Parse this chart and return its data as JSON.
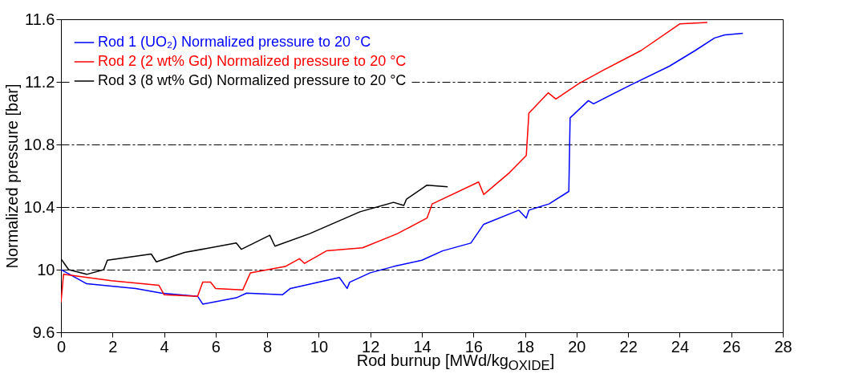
{
  "chart_data": {
    "type": "line",
    "xlabel": "Rod burnup [MWd/kg$_{OXIDE}$]",
    "ylabel": "Normalized pressure [bar]",
    "xlim": [
      0,
      28
    ],
    "xticks": [
      0,
      2,
      4,
      6,
      8,
      10,
      12,
      14,
      16,
      18,
      20,
      22,
      24,
      26,
      28
    ],
    "ylim": [
      9.6,
      11.6
    ],
    "yticks": [
      9.6,
      10,
      10.4,
      10.8,
      11.2,
      11.6
    ],
    "grid": "y",
    "legend": "top left",
    "line_style": "solid",
    "series": [
      {
        "name": "Rod 1 (UO₂) Normalized pressure to 20 °C",
        "color": "#0000ff",
        "x": [
          0,
          1.0,
          2.9,
          3.9,
          5.3,
          5.5,
          6.8,
          7.2,
          8.6,
          8.9,
          10.8,
          11.1,
          11.2,
          12.0,
          12.9,
          14.0,
          14.8,
          15.9,
          16.4,
          17.76,
          18.05,
          18.15,
          18.93,
          19.7,
          19.75,
          20.46,
          20.66,
          22.1,
          23.6,
          24.6,
          25.35,
          25.75,
          26.45
        ],
        "values": [
          10.0,
          9.91,
          9.88,
          9.85,
          9.83,
          9.78,
          9.82,
          9.85,
          9.84,
          9.88,
          9.95,
          9.88,
          9.92,
          9.98,
          10.02,
          10.06,
          10.12,
          10.17,
          10.29,
          10.38,
          10.33,
          10.38,
          10.42,
          10.5,
          10.97,
          11.08,
          11.06,
          11.18,
          11.3,
          11.4,
          11.48,
          11.5,
          11.51
        ]
      },
      {
        "name": "Rod 2 (2 wt% Gd) Normalized pressure to 20 °C",
        "color": "#ff0000",
        "x": [
          0,
          0.1,
          1.95,
          3.8,
          4.0,
          5.3,
          5.5,
          5.8,
          6.0,
          7.05,
          7.35,
          8.7,
          9.25,
          9.45,
          10.3,
          11.7,
          12.9,
          13.05,
          14.2,
          14.4,
          16.2,
          16.4,
          17.4,
          18.05,
          18.15,
          18.9,
          19.2,
          20.1,
          21.1,
          22.5,
          24.0,
          25.07
        ],
        "values": [
          9.79,
          9.97,
          9.93,
          9.9,
          9.84,
          9.83,
          9.92,
          9.92,
          9.88,
          9.87,
          9.98,
          10.02,
          10.07,
          10.04,
          10.12,
          10.14,
          10.22,
          10.23,
          10.33,
          10.42,
          10.56,
          10.48,
          10.62,
          10.73,
          11.0,
          11.13,
          11.09,
          11.19,
          11.28,
          11.4,
          11.57,
          11.58
        ]
      },
      {
        "name": "Rod 3 (8 wt% Gd) Normalized pressure to 20 °C",
        "color": "#000000",
        "x": [
          0,
          0.3,
          1.0,
          1.66,
          1.8,
          3.5,
          3.7,
          4.8,
          6.8,
          7.0,
          8.1,
          8.3,
          9.65,
          11.6,
          12.9,
          13.3,
          13.4,
          14.2,
          15.0
        ],
        "values": [
          10.07,
          10.0,
          9.97,
          10.0,
          10.06,
          10.1,
          10.05,
          10.11,
          10.17,
          10.13,
          10.22,
          10.15,
          10.23,
          10.37,
          10.43,
          10.41,
          10.45,
          10.54,
          10.53
        ]
      }
    ]
  }
}
